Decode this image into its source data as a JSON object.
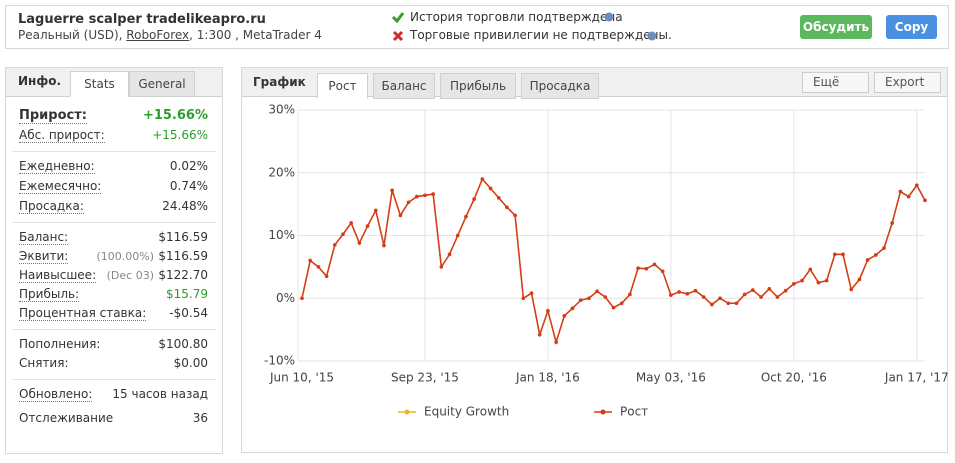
{
  "header": {
    "title": "Laguerre scalper tradelikeapro.ru",
    "account": "Реальный (USD),",
    "broker": "RoboForex",
    "details": ", 1:300 , MetaTrader 4",
    "status": [
      "История торговли подтверждена",
      "Торговые привилегии не подтверждены."
    ],
    "buttons": [
      "Обсудить",
      "Copy"
    ]
  },
  "info_panel": {
    "tabs": [
      "Инфо.",
      "Stats",
      "General"
    ],
    "groups": [
      [
        {
          "label": "Прирост:",
          "value": "+15.66%"
        },
        {
          "label": "Абс. прирост:",
          "value": "+15.66%"
        }
      ],
      [
        {
          "label": "Ежедневно:",
          "value": "0.02%"
        },
        {
          "label": "Ежемесячно:",
          "value": "0.74%"
        },
        {
          "label": "Просадка:",
          "value": "24.48%"
        }
      ],
      [
        {
          "label": "Баланс:",
          "value": "$116.59"
        },
        {
          "label": "Эквити:",
          "note": "(100.00%)",
          "value": "$116.59"
        },
        {
          "label": "Наивысшее:",
          "note": "(Dec 03)",
          "value": "$122.70"
        },
        {
          "label": "Прибыль:",
          "value": "$15.79"
        },
        {
          "label": "Процентная ставка:",
          "value": "-$0.54"
        }
      ],
      [
        {
          "label": "Пополнения:",
          "value": "$100.80"
        },
        {
          "label": "Снятия:",
          "value": "$0.00"
        }
      ],
      [
        {
          "label": "Обновлено:",
          "value": "15 часов назад"
        },
        {
          "label": "Отслеживание",
          "value": "36"
        }
      ]
    ]
  },
  "chart_panel": {
    "tabs": [
      "График",
      "Рост",
      "Баланс",
      "Прибыль",
      "Просадка"
    ],
    "menus": [
      "Ещё",
      "Export"
    ]
  },
  "chart_data": {
    "type": "line",
    "categories": [
      "Jun 10, '15",
      null,
      null,
      null,
      null,
      null,
      null,
      null,
      null,
      null,
      null,
      null,
      null,
      null,
      null,
      "Sep 23, '15",
      null,
      null,
      null,
      null,
      null,
      null,
      null,
      null,
      null,
      null,
      null,
      null,
      null,
      null,
      "Jan 18, '16",
      null,
      null,
      null,
      null,
      null,
      null,
      null,
      null,
      null,
      null,
      null,
      null,
      null,
      null,
      "May 03, '16",
      null,
      null,
      null,
      null,
      null,
      null,
      null,
      null,
      null,
      null,
      null,
      null,
      null,
      null,
      "Oct 20, '16",
      null,
      null,
      null,
      null,
      null,
      null,
      null,
      null,
      null,
      null,
      null,
      null,
      null,
      null,
      "Jan 17, '17",
      null
    ],
    "series": [
      {
        "name": "Equity Growth",
        "color": "#f0b323",
        "values": [
          0,
          6,
          5,
          3.5,
          8.5,
          10.2,
          12,
          8.8,
          11.5,
          14,
          8.4,
          17.2,
          13.2,
          15.3,
          16.2,
          16.4,
          16.6,
          5,
          7,
          10,
          13,
          15.8,
          19,
          17.5,
          16,
          14.5,
          13.2,
          0,
          0.8,
          -5.8,
          -2,
          -7,
          -2.8,
          -1.6,
          -0.3,
          0,
          1.1,
          0.2,
          -1.5,
          -0.8,
          0.6,
          4.8,
          4.7,
          5.4,
          4.3,
          0.5,
          1,
          0.7,
          1.2,
          0.2,
          -1,
          0,
          -0.8,
          -0.8,
          0.6,
          1.3,
          0.2,
          1.5,
          0.2,
          1.2,
          2.3,
          2.8,
          4.6,
          2.5,
          2.8,
          7,
          7,
          1.4,
          3,
          6.1,
          6.9,
          8,
          12,
          17,
          16.2,
          18,
          15.6
        ]
      },
      {
        "name": "Рост",
        "color": "#d43b1b",
        "values": [
          0,
          6,
          5,
          3.5,
          8.5,
          10.2,
          12,
          8.8,
          11.5,
          14,
          8.4,
          17.2,
          13.2,
          15.3,
          16.2,
          16.4,
          16.6,
          5,
          7,
          10,
          13,
          15.8,
          19,
          17.5,
          16,
          14.5,
          13.2,
          0,
          0.8,
          -5.8,
          -2,
          -7,
          -2.8,
          -1.6,
          -0.3,
          0,
          1.1,
          0.2,
          -1.5,
          -0.8,
          0.6,
          4.8,
          4.7,
          5.4,
          4.3,
          0.5,
          1,
          0.7,
          1.2,
          0.2,
          -1,
          0,
          -0.8,
          -0.8,
          0.6,
          1.3,
          0.2,
          1.5,
          0.2,
          1.2,
          2.3,
          2.8,
          4.6,
          2.5,
          2.8,
          7,
          7,
          1.4,
          3,
          6.1,
          6.9,
          8,
          12,
          17,
          16.2,
          18,
          15.6
        ]
      }
    ],
    "ylim": [
      -10,
      30
    ],
    "yticks": [
      {
        "value": -10,
        "label": "-10%"
      },
      {
        "value": 0,
        "label": "0%"
      },
      {
        "value": 10,
        "label": "10%"
      },
      {
        "value": 20,
        "label": "20%"
      },
      {
        "value": 30,
        "label": "30%"
      }
    ],
    "grid": true
  }
}
